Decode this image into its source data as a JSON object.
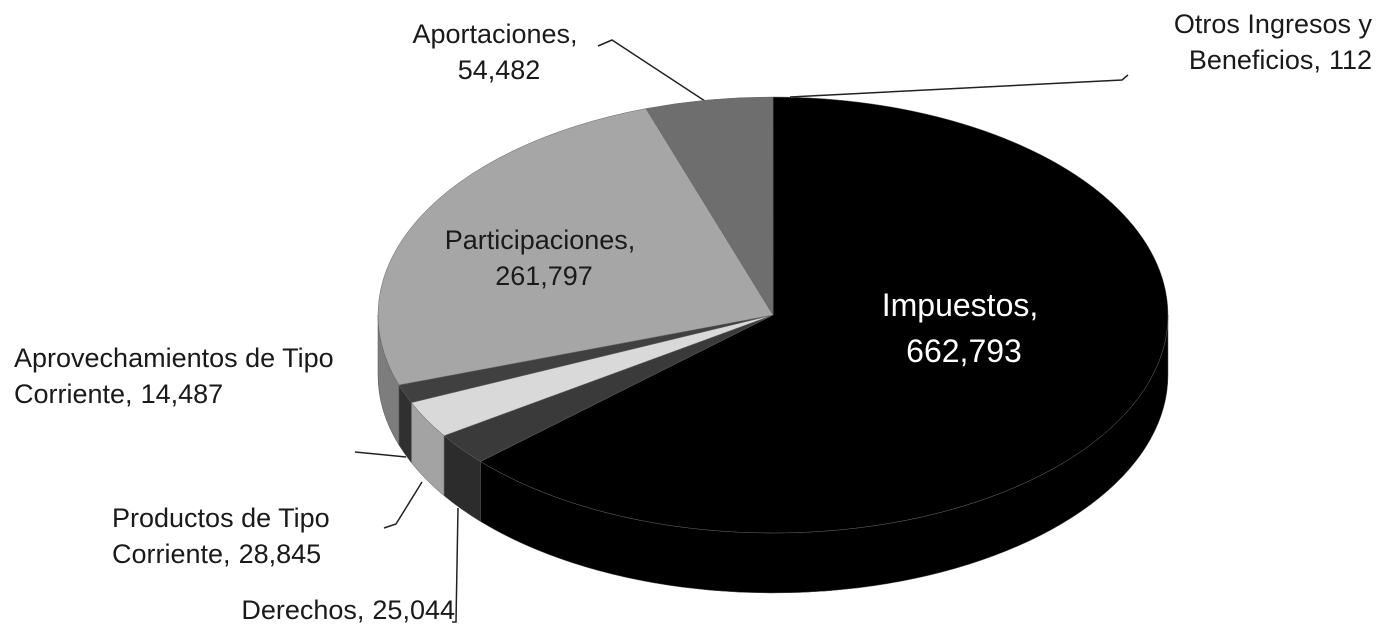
{
  "chart_data": {
    "type": "pie",
    "categories": [
      "Impuestos",
      "Derechos",
      "Productos de Tipo Corriente",
      "Aprovechamientos de Tipo Corriente",
      "Participaciones",
      "Aportaciones",
      "Otros Ingresos y Beneficios"
    ],
    "values": [
      662793,
      25044,
      28845,
      14487,
      261797,
      54482,
      112
    ],
    "value_labels": [
      "662,793",
      "25,044",
      "28,845",
      "14,487",
      "261,797",
      "54,482",
      "112"
    ],
    "label_separator": ",",
    "colors": [
      "#000000",
      "#3a3a3a",
      "#d9d9d9",
      "#404040",
      "#a6a6a6",
      "#6e6e6e",
      "#8a8a8a"
    ]
  }
}
